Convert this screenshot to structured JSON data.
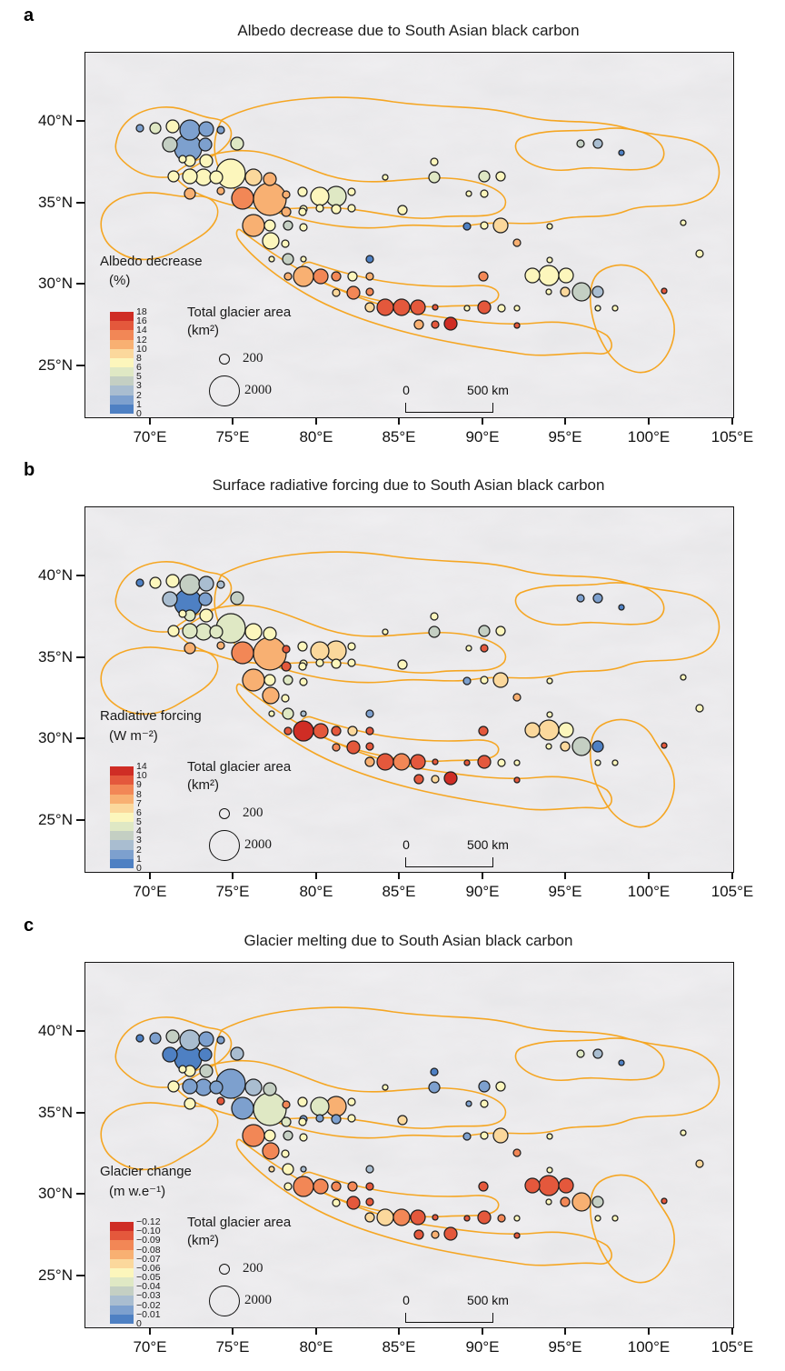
{
  "figure": {
    "panels": [
      {
        "label": "a",
        "title": "Albedo decrease due to South Asian black carbon",
        "legend_title": "Albedo decrease",
        "legend_unit": "(%)",
        "colorbar_labels": [
          "18",
          "16",
          "14",
          "12",
          "10",
          "8",
          "6",
          "5",
          "3",
          "2",
          "1",
          "0"
        ]
      },
      {
        "label": "b",
        "title": "Surface radiative forcing due to South Asian black carbon",
        "legend_title": "Radiative forcing",
        "legend_unit": "(W m⁻²)",
        "colorbar_labels": [
          "14",
          "10",
          "9",
          "8",
          "7",
          "6",
          "5",
          "4",
          "3",
          "2",
          "1",
          "0"
        ]
      },
      {
        "label": "c",
        "title": "Glacier melting due to South Asian black carbon",
        "legend_title": "Glacier change",
        "legend_unit": "(m w.e⁻¹)",
        "colorbar_labels": [
          "−0.12",
          "−0.10",
          "−0.09",
          "−0.08",
          "−0.07",
          "−0.06",
          "−0.05",
          "−0.04",
          "−0.03",
          "−0.02",
          "−0.01",
          "0"
        ]
      }
    ],
    "axes": {
      "x_tick_labels": [
        "70°E",
        "75°E",
        "80°E",
        "85°E",
        "90°E",
        "95°E",
        "100°E",
        "105°E"
      ],
      "y_tick_labels": [
        "40°N",
        "35°N",
        "30°N",
        "25°N"
      ]
    },
    "size_legend": {
      "title": "Total glacier area",
      "unit": "(km²)",
      "small_label": "200",
      "large_label": "2000"
    },
    "scale_bar": {
      "zero_label": "0",
      "distance_label": "500 km"
    }
  },
  "chart_data": {
    "type": "scatter",
    "description": "Three bubble maps over the Tibetan Plateau (70–105°E, 25–43°N). Each bubble is a glacier region: bubble size = total glacier area (km², 200–2000), bubble color = panel variable binned on an 11-class blue→yellow→red scale. Orange outlines are glacier sub-region boundaries over a gray hillshade base.",
    "palette_low_to_high": [
      "#4e80c3",
      "#7da0ce",
      "#a9bdd0",
      "#c4cfc3",
      "#dfe8c4",
      "#fcf6bc",
      "#fbd89c",
      "#f8b072",
      "#f28756",
      "#e4583c",
      "#cf2d25"
    ],
    "panel_color_scales": {
      "a": {
        "variable": "Albedo decrease (%)",
        "breaks": [
          0,
          1,
          2,
          3,
          5,
          6,
          8,
          10,
          12,
          14,
          16,
          18
        ]
      },
      "b": {
        "variable": "Surface radiative forcing (W m⁻²)",
        "breaks": [
          0,
          1,
          2,
          3,
          4,
          5,
          6,
          7,
          8,
          9,
          10,
          14
        ]
      },
      "c": {
        "variable": "Glacier mass change (m w.e⁻¹)",
        "breaks": [
          0,
          -0.01,
          -0.02,
          -0.03,
          -0.04,
          -0.05,
          -0.06,
          -0.07,
          -0.08,
          -0.09,
          -0.1,
          -0.12
        ]
      }
    },
    "points_format": [
      "x_px_in_map",
      "y_px_in_map",
      "radius_px",
      "color_index_panel_a",
      "color_index_panel_b",
      "color_index_panel_c"
    ],
    "points": [
      [
        60,
        83,
        4,
        1,
        0,
        0
      ],
      [
        77,
        83,
        6,
        4,
        5,
        1
      ],
      [
        96,
        81,
        7,
        5,
        5,
        3
      ],
      [
        115,
        85,
        11,
        1,
        3,
        2
      ],
      [
        133,
        84,
        8,
        1,
        2,
        1
      ],
      [
        149,
        85,
        4,
        1,
        2,
        1
      ],
      [
        93,
        101,
        8,
        3,
        2,
        0
      ],
      [
        113,
        105,
        15,
        1,
        0,
        0
      ],
      [
        132,
        101,
        7,
        1,
        1,
        0
      ],
      [
        167,
        100,
        7,
        4,
        3,
        2
      ],
      [
        107,
        117,
        4,
        5,
        5,
        5
      ],
      [
        115,
        119,
        6,
        5,
        4,
        5
      ],
      [
        133,
        119,
        7,
        5,
        5,
        3
      ],
      [
        97,
        136,
        6,
        5,
        5,
        5
      ],
      [
        115,
        136,
        8,
        5,
        4,
        1
      ],
      [
        130,
        137,
        9,
        5,
        4,
        1
      ],
      [
        144,
        137,
        7,
        5,
        4,
        1
      ],
      [
        160,
        133,
        16,
        5,
        4,
        1
      ],
      [
        185,
        137,
        9,
        6,
        5,
        2
      ],
      [
        203,
        139,
        7,
        7,
        5,
        3
      ],
      [
        115,
        155,
        6,
        7,
        7,
        5
      ],
      [
        149,
        152,
        4,
        7,
        7,
        9
      ],
      [
        173,
        160,
        12,
        8,
        8,
        1
      ],
      [
        203,
        161,
        18,
        7,
        7,
        4
      ],
      [
        221,
        156,
        4,
        7,
        9,
        8
      ],
      [
        239,
        153,
        5,
        5,
        5,
        5
      ],
      [
        258,
        158,
        10,
        5,
        6,
        4
      ],
      [
        276,
        158,
        11,
        4,
        6,
        7
      ],
      [
        293,
        153,
        4,
        5,
        5,
        5
      ],
      [
        293,
        171,
        4,
        5,
        5,
        5
      ],
      [
        258,
        171,
        4,
        5,
        5,
        1
      ],
      [
        276,
        172,
        5,
        5,
        5,
        1
      ],
      [
        240,
        172,
        4,
        5,
        5,
        1
      ],
      [
        185,
        190,
        12,
        7,
        7,
        8
      ],
      [
        203,
        190,
        6,
        5,
        5,
        5
      ],
      [
        221,
        175,
        5,
        7,
        9,
        4
      ],
      [
        239,
        175,
        4,
        5,
        5,
        5
      ],
      [
        223,
        190,
        5,
        3,
        4,
        3
      ],
      [
        240,
        192,
        4,
        5,
        5,
        5
      ],
      [
        204,
        207,
        9,
        5,
        7,
        8
      ],
      [
        220,
        210,
        4,
        5,
        5,
        5
      ],
      [
        223,
        227,
        6,
        3,
        4,
        5
      ],
      [
        240,
        227,
        3,
        5,
        2,
        2
      ],
      [
        205,
        227,
        3,
        5,
        5,
        6
      ],
      [
        313,
        227,
        4,
        0,
        1,
        2
      ],
      [
        223,
        246,
        4,
        7,
        9,
        5
      ],
      [
        240,
        246,
        11,
        7,
        10,
        8
      ],
      [
        259,
        246,
        8,
        8,
        9,
        8
      ],
      [
        276,
        246,
        5,
        8,
        9,
        8
      ],
      [
        294,
        246,
        5,
        5,
        6,
        8
      ],
      [
        313,
        246,
        4,
        7,
        9,
        9
      ],
      [
        276,
        264,
        4,
        6,
        8,
        5
      ],
      [
        295,
        264,
        7,
        8,
        9,
        9
      ],
      [
        313,
        263,
        4,
        8,
        9,
        9
      ],
      [
        313,
        280,
        5,
        6,
        7,
        6
      ],
      [
        330,
        280,
        9,
        9,
        9,
        6
      ],
      [
        348,
        280,
        9,
        9,
        8,
        8
      ],
      [
        366,
        280,
        8,
        9,
        9,
        9
      ],
      [
        385,
        280,
        3,
        9,
        9,
        9
      ],
      [
        420,
        281,
        3,
        5,
        9,
        9
      ],
      [
        439,
        280,
        7,
        9,
        9,
        9
      ],
      [
        458,
        281,
        4,
        5,
        5,
        8
      ],
      [
        438,
        246,
        5,
        8,
        9,
        9
      ],
      [
        367,
        299,
        5,
        7,
        9,
        9
      ],
      [
        385,
        299,
        4,
        9,
        6,
        7
      ],
      [
        402,
        298,
        7,
        10,
        10,
        9
      ],
      [
        511,
        228,
        3,
        5,
        5,
        5
      ],
      [
        511,
        191,
        3,
        5,
        5,
        5
      ],
      [
        475,
        281,
        3,
        5,
        5,
        5
      ],
      [
        475,
        300,
        3,
        9,
        9,
        9
      ],
      [
        492,
        245,
        8,
        5,
        6,
        9
      ],
      [
        510,
        245,
        11,
        5,
        6,
        9
      ],
      [
        529,
        245,
        8,
        5,
        5,
        9
      ],
      [
        510,
        263,
        3,
        5,
        5,
        5
      ],
      [
        528,
        263,
        5,
        6,
        6,
        8
      ],
      [
        546,
        263,
        10,
        3,
        3,
        7
      ],
      [
        564,
        263,
        6,
        2,
        0,
        3
      ],
      [
        564,
        281,
        3,
        5,
        5,
        5
      ],
      [
        583,
        281,
        3,
        5,
        5,
        5
      ],
      [
        637,
        262,
        3,
        9,
        9,
        9
      ],
      [
        384,
        120,
        4,
        5,
        5,
        0
      ],
      [
        384,
        137,
        6,
        4,
        3,
        1
      ],
      [
        330,
        137,
        3,
        5,
        5,
        5
      ],
      [
        439,
        136,
        6,
        4,
        3,
        1
      ],
      [
        457,
        136,
        5,
        5,
        5,
        5
      ],
      [
        422,
        155,
        3,
        5,
        5,
        1
      ],
      [
        439,
        155,
        4,
        5,
        9,
        5
      ],
      [
        349,
        173,
        5,
        5,
        5,
        6
      ],
      [
        420,
        191,
        4,
        0,
        1,
        1
      ],
      [
        439,
        190,
        4,
        5,
        5,
        5
      ],
      [
        457,
        190,
        8,
        6,
        6,
        6
      ],
      [
        475,
        209,
        4,
        7,
        7,
        8
      ],
      [
        545,
        100,
        4,
        3,
        1,
        4
      ],
      [
        564,
        100,
        5,
        2,
        1,
        2
      ],
      [
        590,
        110,
        3,
        0,
        0,
        0
      ],
      [
        676,
        221,
        4,
        5,
        5,
        6
      ],
      [
        658,
        187,
        3,
        5,
        5,
        5
      ]
    ]
  }
}
